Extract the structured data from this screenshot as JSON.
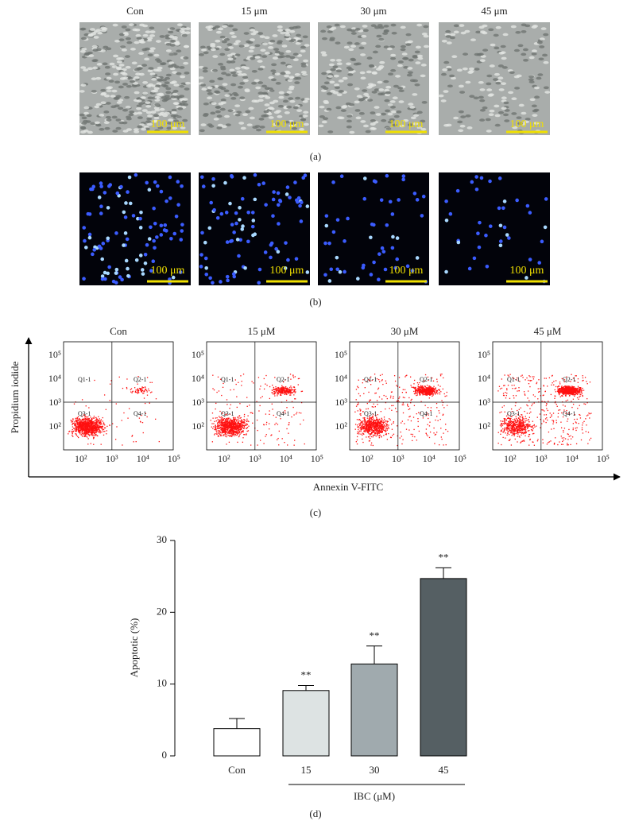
{
  "panel_a": {
    "labels": [
      "Con",
      "15 μm",
      "30 μm",
      "45 μm"
    ],
    "scale_bar": "100 μm",
    "caption": "(a)"
  },
  "panel_b": {
    "scale_bar": "100 μm",
    "caption": "(b)"
  },
  "panel_c": {
    "titles": [
      "Con",
      "15 μM",
      "30 μM",
      "45 μM"
    ],
    "y_label": "Propidium iodide",
    "x_label": "Annexin V-FITC",
    "quadrants": [
      "Q1-1",
      "Q2-1",
      "Q3-1",
      "Q4-1"
    ],
    "x_tick_labels": [
      "10²",
      "10³",
      "10⁴",
      "10⁵"
    ],
    "y_tick_labels": [
      "10²",
      "10³",
      "10⁴",
      "10⁵"
    ],
    "caption": "(c)"
  },
  "chart_data": {
    "type": "bar",
    "categories": [
      "Con",
      "15",
      "30",
      "45"
    ],
    "values": [
      3.8,
      9.1,
      12.8,
      24.7
    ],
    "errors": [
      1.4,
      0.7,
      2.5,
      1.5
    ],
    "colors": [
      "#ffffff",
      "#dde3e3",
      "#a0aaae",
      "#555f63"
    ],
    "significance": [
      null,
      "**",
      "**",
      "**"
    ],
    "ylim": [
      0,
      30
    ],
    "yticks": [
      0,
      10,
      20,
      30
    ],
    "ylabel": "Apoptotic (%)",
    "xlabel": "IBC (μM)",
    "caption": "(d)"
  }
}
